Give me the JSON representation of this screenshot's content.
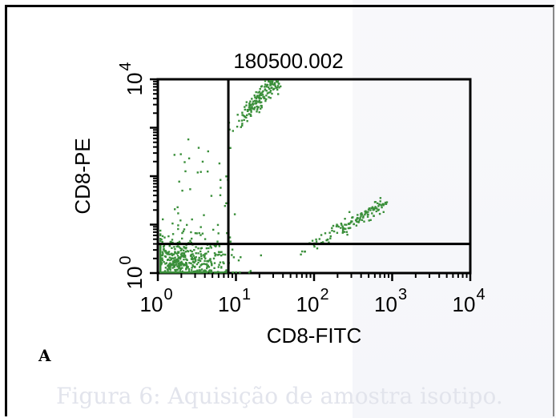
{
  "figure": {
    "panel_label": "A",
    "ghost_caption": "Figura 6: Aquisição de amostra isotipo."
  },
  "chart_data": {
    "type": "scatter",
    "title": "180500.002",
    "xlabel": "CD8-FITC",
    "ylabel": "CD8-PE",
    "x_scale": "log",
    "y_scale": "log",
    "xlim": [
      1,
      10000
    ],
    "ylim": [
      1,
      10000
    ],
    "x_ticks": [
      {
        "base": "10",
        "exp": "0"
      },
      {
        "base": "10",
        "exp": "1"
      },
      {
        "base": "10",
        "exp": "2"
      },
      {
        "base": "10",
        "exp": "3"
      },
      {
        "base": "10",
        "exp": "4"
      }
    ],
    "y_ticks": [
      {
        "base": "10",
        "exp": "0"
      },
      {
        "base": "10",
        "exp": "4"
      }
    ],
    "quadrant_gates": {
      "x": 8,
      "y": 4
    },
    "point_color": "#3a8f3a",
    "populations": [
      {
        "name": "",
        "center_x": 1.6,
        "center_y": 1.4,
        "spread_x": 0.35,
        "spread_y": 0.3,
        "count": 700,
        "shape": "blob"
      },
      {
        "name": "",
        "x_start": 8,
        "y_start": 800,
        "x_end": 30,
        "y_end": 9000,
        "count": 160,
        "shape": "diagonal"
      },
      {
        "name": "",
        "x_start": 60,
        "y_start": 2.5,
        "x_end": 800,
        "y_end": 30,
        "count": 140,
        "shape": "diagonal"
      },
      {
        "name": "",
        "x_min": 1.5,
        "x_max": 10,
        "y_min": 1.5,
        "y_max": 700,
        "count": 70,
        "shape": "scatter"
      }
    ]
  }
}
